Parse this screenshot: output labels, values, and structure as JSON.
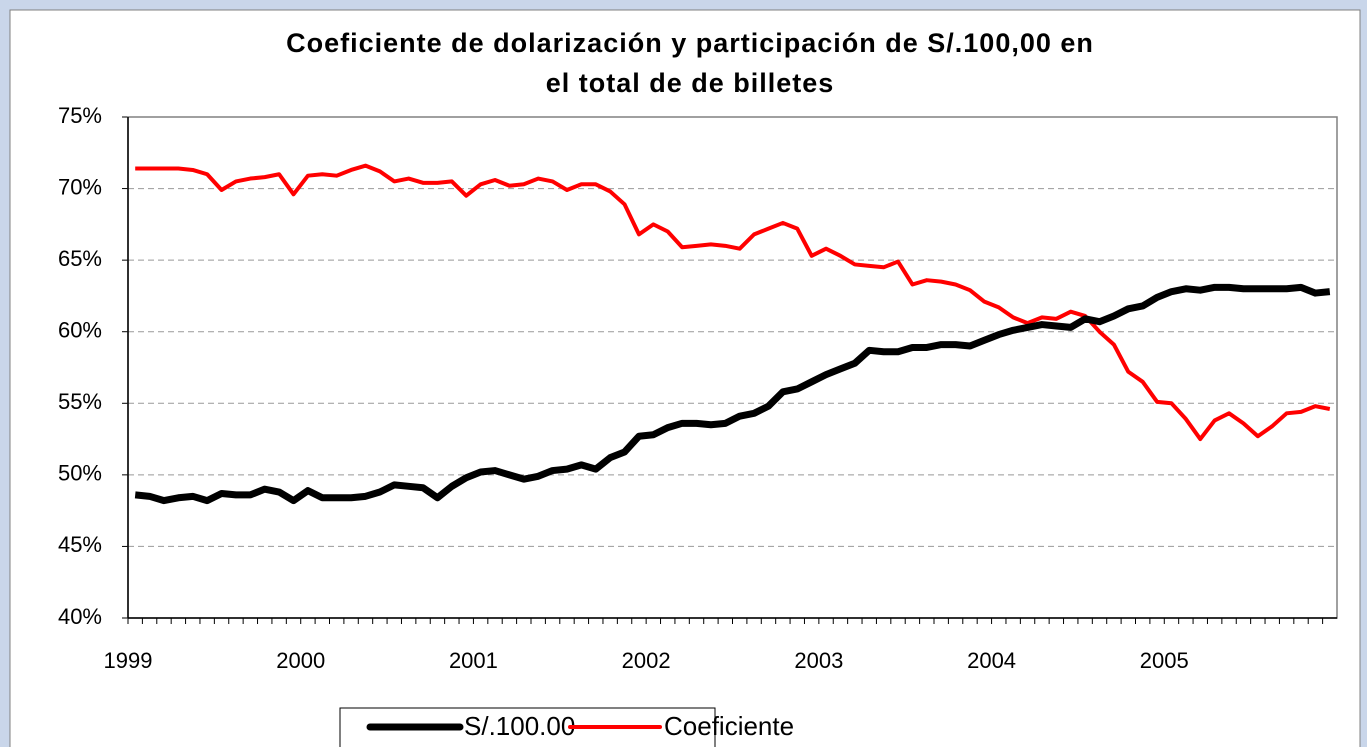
{
  "chart_data": {
    "type": "line",
    "title": [
      "Coeficiente de dolarización y participación de S/.100,00 en",
      "el total de de billetes"
    ],
    "categories": [
      "1999",
      null,
      null,
      null,
      null,
      null,
      null,
      null,
      null,
      null,
      null,
      null,
      "2000",
      null,
      null,
      null,
      null,
      null,
      null,
      null,
      null,
      null,
      null,
      null,
      "2001",
      null,
      null,
      null,
      null,
      null,
      null,
      null,
      null,
      null,
      null,
      null,
      "2002",
      null,
      null,
      null,
      null,
      null,
      null,
      null,
      null,
      null,
      null,
      null,
      "2003",
      null,
      null,
      null,
      null,
      null,
      null,
      null,
      null,
      null,
      null,
      null,
      "2004",
      null,
      null,
      null,
      null,
      null,
      null,
      null,
      null,
      null,
      null,
      null,
      "2005",
      null,
      null,
      null,
      null,
      null,
      null,
      null,
      null,
      null,
      null,
      null
    ],
    "series": [
      {
        "name": "S/.100.00",
        "color": "#000000",
        "values": [
          48.6,
          48.5,
          48.2,
          48.4,
          48.5,
          48.2,
          48.7,
          48.6,
          48.6,
          49.0,
          48.8,
          48.2,
          48.9,
          48.4,
          48.4,
          48.4,
          48.5,
          48.8,
          49.3,
          49.2,
          49.1,
          48.4,
          49.2,
          49.8,
          50.2,
          50.3,
          50.0,
          49.7,
          49.9,
          50.3,
          50.4,
          50.7,
          50.4,
          51.2,
          51.6,
          52.7,
          52.8,
          53.3,
          53.6,
          53.6,
          53.5,
          53.6,
          54.1,
          54.3,
          54.8,
          55.8,
          56.0,
          56.5,
          57.0,
          57.4,
          57.8,
          58.7,
          58.6,
          58.6,
          58.9,
          58.9,
          59.1,
          59.1,
          59.0,
          59.4,
          59.8,
          60.1,
          60.3,
          60.5,
          60.4,
          60.3,
          60.9,
          60.7,
          61.1,
          61.6,
          61.8,
          62.4,
          62.8,
          63.0,
          62.9,
          63.1,
          63.1,
          63.0,
          63.0,
          63.0,
          63.0,
          63.1,
          62.7,
          62.8
        ]
      },
      {
        "name": "Coeficiente",
        "color": "#ff0000",
        "values": [
          71.4,
          71.4,
          71.4,
          71.4,
          71.3,
          71.0,
          69.9,
          70.5,
          70.7,
          70.8,
          71.0,
          69.6,
          70.9,
          71.0,
          70.9,
          71.3,
          71.6,
          71.2,
          70.5,
          70.7,
          70.4,
          70.4,
          70.5,
          69.5,
          70.3,
          70.6,
          70.2,
          70.3,
          70.7,
          70.5,
          69.9,
          70.3,
          70.3,
          69.8,
          68.9,
          66.8,
          67.5,
          67.0,
          65.9,
          66.0,
          66.1,
          66.0,
          65.8,
          66.8,
          67.2,
          67.6,
          67.2,
          65.3,
          65.8,
          65.3,
          64.7,
          64.6,
          64.5,
          64.9,
          63.3,
          63.6,
          63.5,
          63.3,
          62.9,
          62.1,
          61.7,
          61.0,
          60.6,
          61.0,
          60.9,
          61.4,
          61.1,
          60.0,
          59.1,
          57.2,
          56.5,
          55.1,
          55.0,
          53.9,
          52.5,
          53.8,
          54.3,
          53.6,
          52.7,
          53.4,
          54.3,
          54.4,
          54.8,
          54.6
        ]
      }
    ],
    "ylim": [
      40,
      75
    ],
    "yticks": [
      {
        "value": 40,
        "label": "40%"
      },
      {
        "value": 45,
        "label": "45%"
      },
      {
        "value": 50,
        "label": "50%"
      },
      {
        "value": 55,
        "label": "55%"
      },
      {
        "value": 60,
        "label": "60%"
      },
      {
        "value": 65,
        "label": "65%"
      },
      {
        "value": 70,
        "label": "70%"
      },
      {
        "value": 75,
        "label": "75%"
      }
    ],
    "grid": true
  }
}
